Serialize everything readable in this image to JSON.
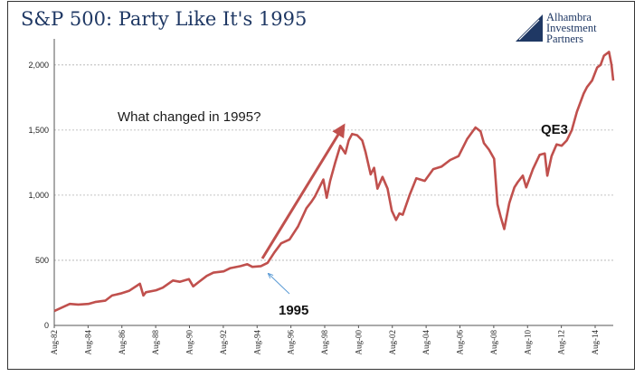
{
  "chart_data": {
    "type": "line",
    "title": "S&P 500: Party Like It's 1995",
    "xlabel": "",
    "ylabel": "",
    "ylim": [
      0,
      2200
    ],
    "grid": true,
    "yticks": [
      0,
      500,
      1000,
      1500,
      2000
    ],
    "ytick_labels": [
      "0",
      "500",
      "1,000",
      "1,500",
      "2,000"
    ],
    "xtick_labels": [
      "Aug-82",
      "Aug-84",
      "Aug-86",
      "Aug-88",
      "Aug-90",
      "Aug-92",
      "Aug-94",
      "Aug-96",
      "Aug-98",
      "Aug-00",
      "Aug-02",
      "Aug-04",
      "Aug-06",
      "Aug-08",
      "Aug-10",
      "Aug-12",
      "Aug-14"
    ],
    "xtick_years": [
      1982.58,
      1984.58,
      1986.58,
      1988.58,
      1990.58,
      1992.58,
      1994.58,
      1996.58,
      1998.58,
      2000.58,
      2002.58,
      2004.58,
      2006.58,
      2008.58,
      2010.58,
      2012.58,
      2014.58
    ],
    "xlim": [
      1982.58,
      2015.65
    ],
    "series": [
      {
        "color": "#c0504d",
        "x": [
          1982.58,
          1982.9,
          1983.5,
          1984.0,
          1984.6,
          1985.0,
          1985.6,
          1986.0,
          1986.5,
          1987.0,
          1987.65,
          1987.85,
          1988.0,
          1988.6,
          1989.0,
          1989.6,
          1990.0,
          1990.55,
          1990.8,
          1991.1,
          1991.6,
          1992.0,
          1992.6,
          1993.0,
          1993.6,
          1994.0,
          1994.3,
          1994.8,
          1995.2,
          1995.6,
          1996.0,
          1996.5,
          1997.0,
          1997.5,
          1997.8,
          1998.0,
          1998.5,
          1998.7,
          1998.9,
          1999.2,
          1999.5,
          1999.8,
          2000.0,
          2000.2,
          2000.5,
          2000.8,
          2001.0,
          2001.3,
          2001.5,
          2001.7,
          2002.0,
          2002.3,
          2002.55,
          2002.8,
          2003.0,
          2003.2,
          2003.6,
          2004.0,
          2004.5,
          2005.0,
          2005.5,
          2006.0,
          2006.5,
          2007.0,
          2007.5,
          2007.8,
          2008.0,
          2008.3,
          2008.6,
          2008.8,
          2009.0,
          2009.2,
          2009.5,
          2009.8,
          2010.0,
          2010.3,
          2010.5,
          2010.9,
          2011.3,
          2011.6,
          2011.75,
          2012.0,
          2012.3,
          2012.6,
          2012.9,
          2013.2,
          2013.5,
          2013.9,
          2014.1,
          2014.4,
          2014.7,
          2014.9,
          2015.1,
          2015.4,
          2015.55,
          2015.65
        ],
        "values": [
          110,
          130,
          165,
          160,
          165,
          180,
          190,
          230,
          245,
          265,
          320,
          230,
          255,
          270,
          290,
          345,
          335,
          355,
          300,
          330,
          380,
          405,
          415,
          440,
          455,
          470,
          450,
          455,
          480,
          560,
          630,
          660,
          760,
          900,
          950,
          990,
          1120,
          980,
          1110,
          1250,
          1380,
          1320,
          1420,
          1470,
          1460,
          1420,
          1330,
          1160,
          1210,
          1050,
          1140,
          1050,
          880,
          810,
          860,
          850,
          1000,
          1130,
          1110,
          1200,
          1220,
          1270,
          1300,
          1430,
          1520,
          1490,
          1400,
          1350,
          1280,
          930,
          830,
          740,
          940,
          1060,
          1100,
          1150,
          1060,
          1200,
          1310,
          1320,
          1150,
          1300,
          1390,
          1380,
          1420,
          1500,
          1640,
          1780,
          1830,
          1880,
          1980,
          2000,
          2070,
          2100,
          2000,
          1880
        ]
      }
    ],
    "annotations": {
      "question": "What changed in 1995?",
      "year_label": "1995",
      "qe_label": "QE3"
    }
  },
  "logo": {
    "lines": [
      "Alhambra",
      "Investment",
      "Partners"
    ]
  },
  "colors": {
    "line": "#c0504d",
    "arrow_red": "#c0504d",
    "arrow_blue": "#5b9bd5",
    "title": "#1f3864"
  }
}
